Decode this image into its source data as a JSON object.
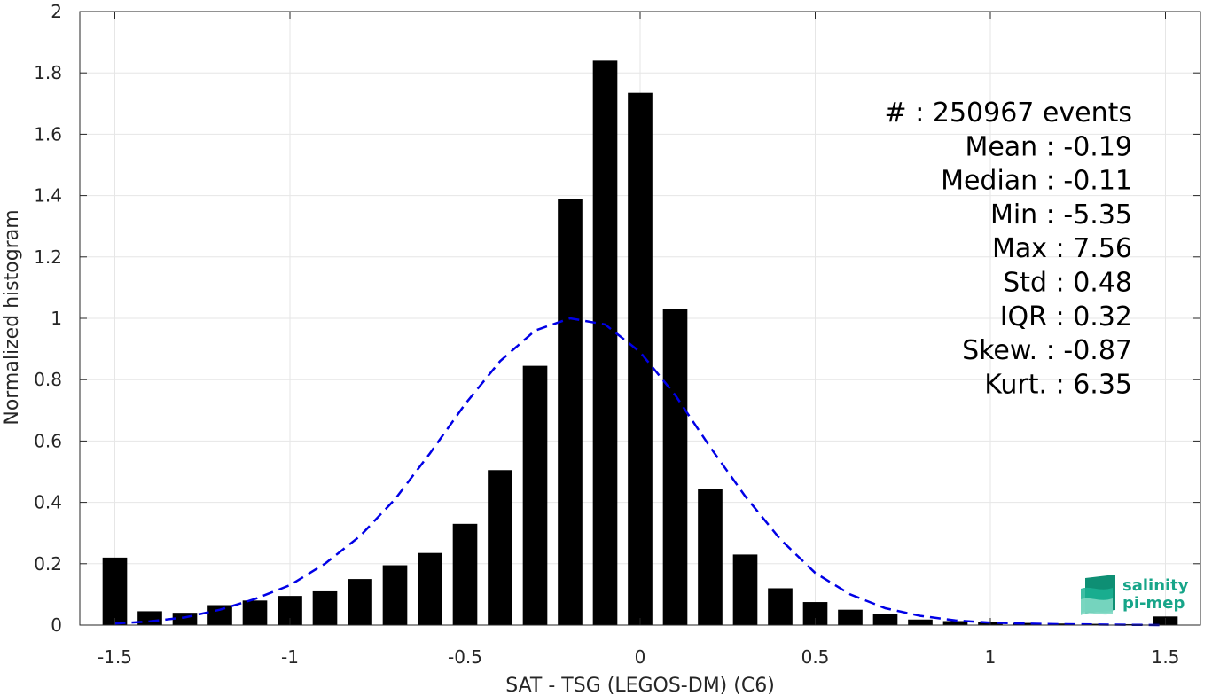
{
  "chart_data": {
    "type": "bar",
    "xlabel": "SAT - TSG (LEGOS-DM) (C6)",
    "ylabel": "Normalized histogram",
    "xlim": [
      -1.6,
      1.6
    ],
    "ylim": [
      0,
      2
    ],
    "x_ticks": [
      -1.5,
      -1,
      -0.5,
      0,
      0.5,
      1,
      1.5
    ],
    "x_tick_labels": [
      "-1.5",
      "-1",
      "-0.5",
      "0",
      "0.5",
      "1",
      "1.5"
    ],
    "y_ticks": [
      0,
      0.2,
      0.4,
      0.6,
      0.8,
      1,
      1.2,
      1.4,
      1.6,
      1.8,
      2
    ],
    "y_tick_labels": [
      "0",
      "0.2",
      "0.4",
      "0.6",
      "0.8",
      "1",
      "1.2",
      "1.4",
      "1.6",
      "1.8",
      "2"
    ],
    "grid": true,
    "bar_color": "#000000",
    "fit_color": "#0000e6",
    "series": [
      {
        "type": "bar",
        "x": [
          -1.5,
          -1.4,
          -1.3,
          -1.2,
          -1.1,
          -1.0,
          -0.9,
          -0.8,
          -0.7,
          -0.6,
          -0.5,
          -0.4,
          -0.3,
          -0.2,
          -0.1,
          0.0,
          0.1,
          0.2,
          0.3,
          0.4,
          0.5,
          0.6,
          0.7,
          0.8,
          0.9,
          1.0,
          1.1,
          1.2,
          1.3,
          1.4,
          1.5
        ],
        "values": [
          0.22,
          0.045,
          0.04,
          0.065,
          0.08,
          0.095,
          0.11,
          0.15,
          0.195,
          0.235,
          0.33,
          0.505,
          0.845,
          1.39,
          1.84,
          1.735,
          1.03,
          0.445,
          0.23,
          0.12,
          0.075,
          0.05,
          0.035,
          0.018,
          0.013,
          0.01,
          0.007,
          0.005,
          0.004,
          0.003,
          0.028
        ]
      },
      {
        "type": "line",
        "style": "dashed",
        "x": [
          -1.5,
          -1.4,
          -1.3,
          -1.2,
          -1.1,
          -1.0,
          -0.9,
          -0.8,
          -0.7,
          -0.6,
          -0.5,
          -0.4,
          -0.3,
          -0.2,
          -0.1,
          0.0,
          0.1,
          0.2,
          0.3,
          0.4,
          0.5,
          0.6,
          0.7,
          0.8,
          0.9,
          1.0,
          1.1,
          1.2,
          1.3,
          1.4,
          1.5
        ],
        "values": [
          0.005,
          0.012,
          0.025,
          0.05,
          0.085,
          0.13,
          0.2,
          0.29,
          0.41,
          0.56,
          0.72,
          0.86,
          0.96,
          1.0,
          0.98,
          0.89,
          0.75,
          0.58,
          0.42,
          0.28,
          0.17,
          0.1,
          0.055,
          0.03,
          0.015,
          0.008,
          0.005,
          0.003,
          0.002,
          0.001,
          0.0
        ]
      }
    ]
  },
  "stats": {
    "lines": [
      "#  : 250967 events",
      "Mean : -0.19",
      "Median : -0.11",
      "Min : -5.35",
      "Max : 7.56",
      "Std : 0.48",
      "IQR : 0.32",
      "Skew. : -0.87",
      "Kurt. : 6.35"
    ]
  },
  "logo": {
    "line1": "salinity",
    "line2": "pi-mep",
    "icon": "wave-stack-icon",
    "color": "#17a589"
  }
}
